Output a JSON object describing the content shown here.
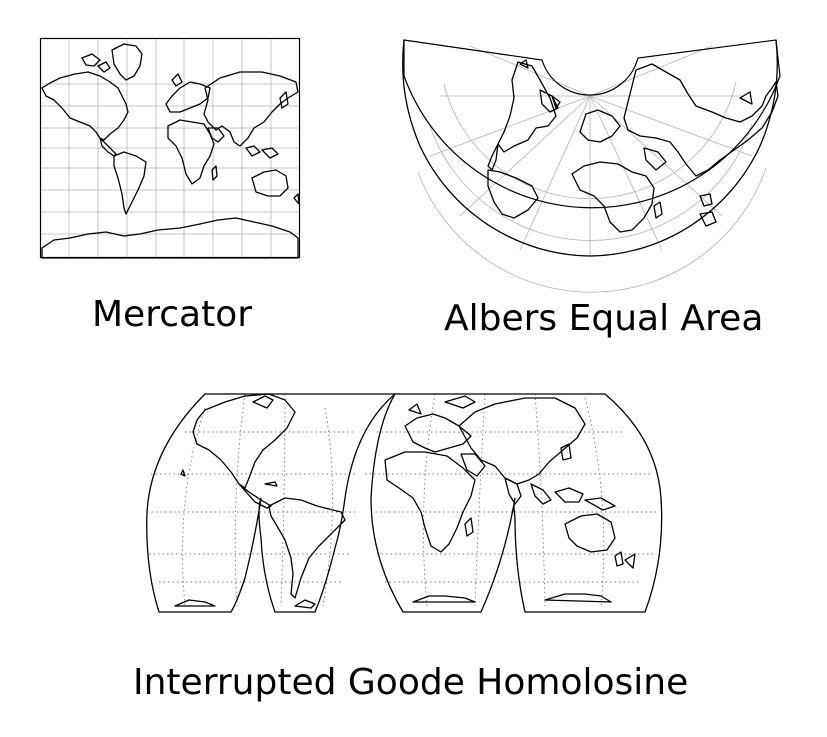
{
  "figure": {
    "background_color": "#ffffff",
    "line_color": "#000000",
    "grid_color": "#b5b5b5",
    "maps": [
      {
        "id": "mercator",
        "label": "Mercator"
      },
      {
        "id": "albers",
        "label": "Albers Equal Area"
      },
      {
        "id": "goode",
        "label": "Interrupted Goode Homolosine"
      }
    ]
  }
}
